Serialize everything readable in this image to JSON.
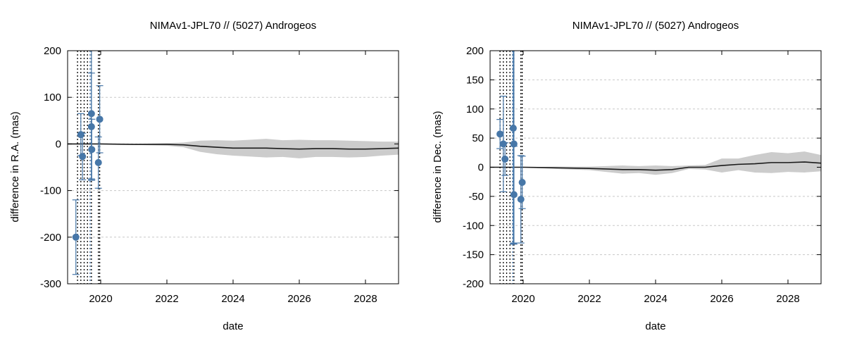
{
  "colors": {
    "points": "#4777a8",
    "error_bars": "#4777a8",
    "band": "#cccccc",
    "curve": "#1a1a1a",
    "grid": "#c8c8c8",
    "vlines": "#000000",
    "vline_blue": "#3a6aa0"
  },
  "chart_data": [
    {
      "type": "scatter",
      "title": "NIMAv1-JPL70 // (5027) Androgeos",
      "xlabel": "date",
      "ylabel": "difference in R.A. (mas)",
      "xlim": [
        2019.0,
        2029.0
      ],
      "ylim": [
        -300,
        200
      ],
      "x_ticks": [
        2020,
        2022,
        2024,
        2026,
        2028
      ],
      "y_ticks": [
        -300,
        -200,
        -100,
        0,
        100,
        200
      ],
      "grid": "horizontal dashed",
      "observation_dates": [
        2019.3,
        2019.4,
        2019.5,
        2019.6,
        2019.68,
        2019.72,
        2019.93,
        2019.97
      ],
      "points": [
        {
          "x": 2019.25,
          "y": -200,
          "err": 80
        },
        {
          "x": 2019.4,
          "y": 20,
          "err": 45
        },
        {
          "x": 2019.45,
          "y": -27,
          "err": 50
        },
        {
          "x": 2019.72,
          "y": 65,
          "err": 140
        },
        {
          "x": 2019.72,
          "y": 37,
          "err": 115
        },
        {
          "x": 2019.73,
          "y": -12,
          "err": 65
        },
        {
          "x": 2019.93,
          "y": -40,
          "err": 55
        },
        {
          "x": 2019.97,
          "y": 53,
          "err": 72
        }
      ],
      "curve": {
        "x": [
          2019.0,
          2020.0,
          2021.0,
          2021.5,
          2022.0,
          2022.5,
          2023.0,
          2023.5,
          2024.0,
          2024.5,
          2025.0,
          2025.5,
          2026.0,
          2026.5,
          2027.0,
          2027.5,
          2028.0,
          2028.5,
          2029.0
        ],
        "y": [
          0,
          0,
          -1,
          -1,
          -1,
          -2,
          -5,
          -7,
          -9,
          -9,
          -9,
          -10,
          -11,
          -10,
          -10,
          -11,
          -11,
          -10,
          -9
        ]
      },
      "band_halfwidth": [
        0,
        0,
        1,
        2,
        3,
        5,
        12,
        15,
        16,
        18,
        20,
        18,
        20,
        18,
        18,
        18,
        17,
        15,
        14
      ]
    },
    {
      "type": "scatter",
      "title": "NIMAv1-JPL70 // (5027) Androgeos",
      "xlabel": "date",
      "ylabel": "difference in Dec. (mas)",
      "xlim": [
        2019.0,
        2029.0
      ],
      "ylim": [
        -200,
        200
      ],
      "x_ticks": [
        2020,
        2022,
        2024,
        2026,
        2028
      ],
      "y_ticks": [
        -200,
        -150,
        -100,
        -50,
        0,
        50,
        100,
        150,
        200
      ],
      "grid": "horizontal dashed",
      "observation_dates": [
        2019.3,
        2019.4,
        2019.5,
        2019.6,
        2019.68,
        2019.72,
        2019.93,
        2019.97
      ],
      "points": [
        {
          "x": 2019.3,
          "y": 57,
          "err": 25
        },
        {
          "x": 2019.4,
          "y": 40,
          "err": 82
        },
        {
          "x": 2019.45,
          "y": 14,
          "err": 28
        },
        {
          "x": 2019.7,
          "y": 67,
          "err": 198
        },
        {
          "x": 2019.72,
          "y": 40,
          "err": 172
        },
        {
          "x": 2019.72,
          "y": -47,
          "err": 83
        },
        {
          "x": 2019.93,
          "y": -55,
          "err": 75
        },
        {
          "x": 2019.97,
          "y": -26,
          "err": 45
        }
      ],
      "curve": {
        "x": [
          2019.0,
          2020.0,
          2021.0,
          2022.0,
          2022.5,
          2023.0,
          2023.5,
          2024.0,
          2024.5,
          2025.0,
          2025.5,
          2026.0,
          2026.5,
          2027.0,
          2027.5,
          2028.0,
          2028.5,
          2029.0
        ],
        "y": [
          0,
          0,
          -1,
          -2,
          -3,
          -4,
          -4,
          -5,
          -4,
          0,
          0,
          3,
          5,
          6,
          8,
          8,
          9,
          7
        ],
        "note": ""
      },
      "band_halfwidth": [
        0,
        0,
        2,
        3,
        5,
        7,
        6,
        8,
        6,
        3,
        4,
        12,
        10,
        15,
        18,
        16,
        18,
        14
      ]
    }
  ]
}
